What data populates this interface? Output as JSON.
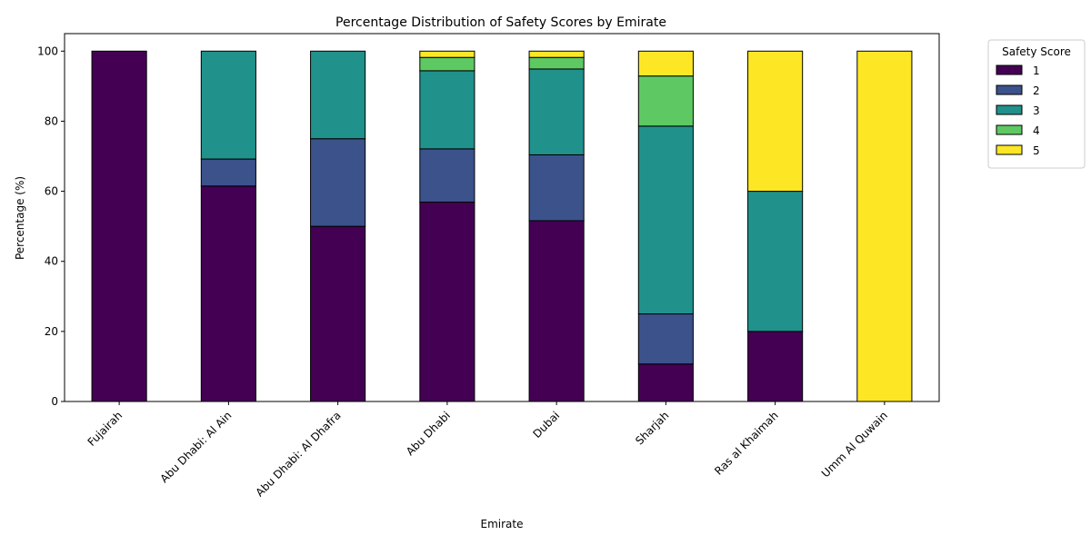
{
  "chart_data": {
    "type": "bar",
    "stacked": true,
    "title": "Percentage Distribution of Safety Scores by Emirate",
    "xlabel": "Emirate",
    "ylabel": "Percentage (%)",
    "ylim": [
      0,
      105
    ],
    "yticks": [
      0,
      20,
      40,
      60,
      80,
      100
    ],
    "grid": false,
    "legend": {
      "title": "Safety Score",
      "placement": "outside-top-right"
    },
    "categories": [
      "Fujairah",
      "Abu Dhabi: Al Ain",
      "Abu Dhabi: Al Dhafra",
      "Abu Dhabi",
      "Dubai",
      "Sharjah",
      "Ras al Khaimah",
      "Umm Al Quwain"
    ],
    "series": [
      {
        "name": "1",
        "color": "#440154",
        "values": [
          100,
          61.5,
          50,
          56.9,
          51.6,
          10.7,
          20,
          0
        ]
      },
      {
        "name": "2",
        "color": "#3b528b",
        "values": [
          0,
          7.7,
          25,
          15.2,
          18.8,
          14.3,
          0,
          0
        ]
      },
      {
        "name": "3",
        "color": "#21918c",
        "values": [
          0,
          30.8,
          25,
          22.3,
          24.5,
          53.6,
          40,
          0
        ]
      },
      {
        "name": "4",
        "color": "#5ec962",
        "values": [
          0,
          0,
          0,
          3.8,
          3.3,
          14.3,
          0,
          0
        ]
      },
      {
        "name": "5",
        "color": "#fde725",
        "values": [
          0,
          0,
          0,
          1.8,
          1.8,
          7.1,
          40,
          100
        ]
      }
    ]
  }
}
